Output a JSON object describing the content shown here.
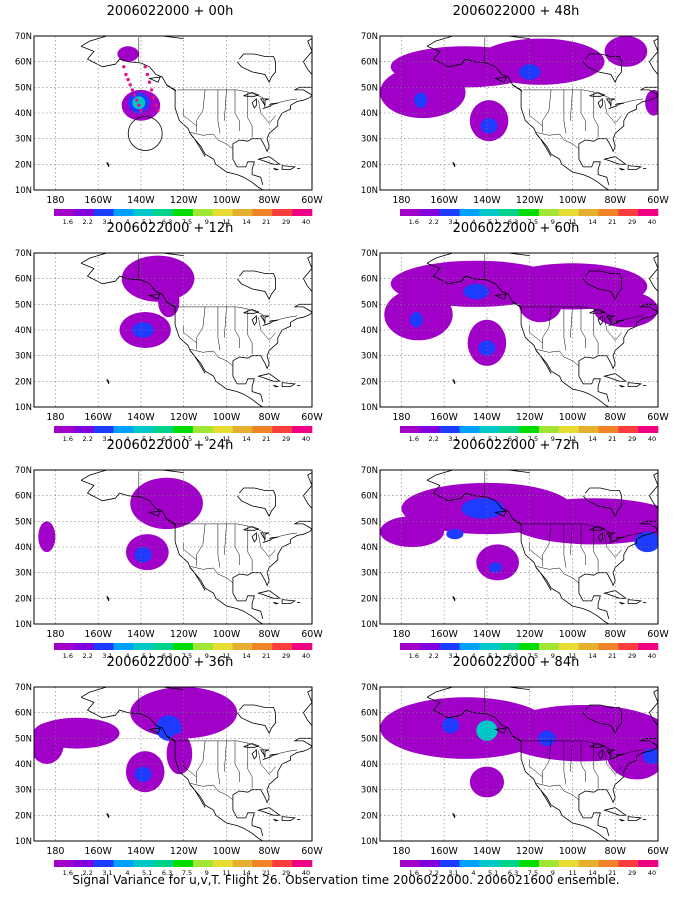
{
  "caption": "Signal Variance for u,v,T. Flight 26. Observation time 2006022000. 2006021600 ensemble.",
  "map": {
    "lat_labels": [
      "70N",
      "60N",
      "50N",
      "40N",
      "30N",
      "20N",
      "10N"
    ],
    "lon_labels": [
      "180",
      "160W",
      "140W",
      "120W",
      "100W",
      "80W",
      "60W"
    ],
    "lon_range": [
      -190,
      -60
    ],
    "lat_range": [
      10,
      70
    ]
  },
  "colorbar": {
    "labels": [
      "1.6",
      "2.2",
      "3.1",
      "4",
      "5.1",
      "6.3",
      "7.5",
      "9",
      "11",
      "14",
      "21",
      "29",
      "40"
    ],
    "colors": [
      "#a000c8",
      "#8200dc",
      "#1e3cff",
      "#00a0ff",
      "#00c8c8",
      "#00d28c",
      "#00dc00",
      "#a0e632",
      "#e6dc32",
      "#e6af2d",
      "#f08228",
      "#fa3c3c",
      "#f00082"
    ]
  },
  "panels": [
    {
      "run": "2006022000",
      "lead": "00h",
      "blobs": [
        {
          "lon": -140,
          "lat": 43,
          "rx": 9,
          "ry": 6,
          "level": 0
        },
        {
          "lon": -141,
          "lat": 44,
          "rx": 5,
          "ry": 4,
          "level": 1
        },
        {
          "lon": -141,
          "lat": 44,
          "rx": 3,
          "ry": 2.5,
          "level": 2
        },
        {
          "lon": -146,
          "lat": 63,
          "rx": 5,
          "ry": 3,
          "level": 0
        }
      ],
      "track": true,
      "circle": true
    },
    {
      "run": "2006022000",
      "lead": "48h",
      "blobs": [
        {
          "lon": -150,
          "lat": 58,
          "rx": 35,
          "ry": 8,
          "level": 0
        },
        {
          "lon": -115,
          "lat": 60,
          "rx": 30,
          "ry": 9,
          "level": 0
        },
        {
          "lon": -170,
          "lat": 48,
          "rx": 20,
          "ry": 10,
          "level": 0
        },
        {
          "lon": -139,
          "lat": 37,
          "rx": 9,
          "ry": 8,
          "level": 0
        },
        {
          "lon": -139,
          "lat": 35,
          "rx": 4,
          "ry": 3,
          "level": 1
        },
        {
          "lon": -171,
          "lat": 45,
          "rx": 3,
          "ry": 3,
          "level": 1
        },
        {
          "lon": -120,
          "lat": 56,
          "rx": 5,
          "ry": 3,
          "level": 1
        },
        {
          "lon": -75,
          "lat": 64,
          "rx": 10,
          "ry": 6,
          "level": 0
        },
        {
          "lon": -62,
          "lat": 44,
          "rx": 4,
          "ry": 5,
          "level": 0
        }
      ],
      "track": false,
      "circle": false
    },
    {
      "run": "2006022000",
      "lead": "12h",
      "blobs": [
        {
          "lon": -132,
          "lat": 60,
          "rx": 17,
          "ry": 9,
          "level": 0
        },
        {
          "lon": -138,
          "lat": 40,
          "rx": 12,
          "ry": 7,
          "level": 0
        },
        {
          "lon": -139,
          "lat": 40,
          "rx": 5,
          "ry": 3,
          "level": 1
        },
        {
          "lon": -127,
          "lat": 51,
          "rx": 5,
          "ry": 6,
          "level": 0
        }
      ],
      "track": false,
      "circle": false
    },
    {
      "run": "2006022000",
      "lead": "60h",
      "blobs": [
        {
          "lon": -145,
          "lat": 58,
          "rx": 40,
          "ry": 9,
          "level": 0
        },
        {
          "lon": -100,
          "lat": 57,
          "rx": 35,
          "ry": 9,
          "level": 0
        },
        {
          "lon": -172,
          "lat": 46,
          "rx": 16,
          "ry": 10,
          "level": 0
        },
        {
          "lon": -140,
          "lat": 35,
          "rx": 9,
          "ry": 9,
          "level": 0
        },
        {
          "lon": -140,
          "lat": 33,
          "rx": 4,
          "ry": 3,
          "level": 1
        },
        {
          "lon": -173,
          "lat": 44,
          "rx": 3,
          "ry": 3,
          "level": 1
        },
        {
          "lon": -145,
          "lat": 55,
          "rx": 6,
          "ry": 3,
          "level": 1
        },
        {
          "lon": -75,
          "lat": 48,
          "rx": 15,
          "ry": 7,
          "level": 0
        },
        {
          "lon": -115,
          "lat": 50,
          "rx": 10,
          "ry": 7,
          "level": 0
        }
      ],
      "track": false,
      "circle": false
    },
    {
      "run": "2006022000",
      "lead": "24h",
      "blobs": [
        {
          "lon": -128,
          "lat": 57,
          "rx": 17,
          "ry": 10,
          "level": 0
        },
        {
          "lon": -137,
          "lat": 38,
          "rx": 10,
          "ry": 7,
          "level": 0
        },
        {
          "lon": -139,
          "lat": 37,
          "rx": 4,
          "ry": 3,
          "level": 1
        },
        {
          "lon": -184,
          "lat": 44,
          "rx": 4,
          "ry": 6,
          "level": 0
        }
      ],
      "track": false,
      "circle": false
    },
    {
      "run": "2006022000",
      "lead": "72h",
      "blobs": [
        {
          "lon": -140,
          "lat": 55,
          "rx": 40,
          "ry": 10,
          "level": 0
        },
        {
          "lon": -90,
          "lat": 50,
          "rx": 40,
          "ry": 9,
          "level": 0
        },
        {
          "lon": -175,
          "lat": 46,
          "rx": 15,
          "ry": 6,
          "level": 0
        },
        {
          "lon": -135,
          "lat": 34,
          "rx": 10,
          "ry": 7,
          "level": 0
        },
        {
          "lon": -136,
          "lat": 32,
          "rx": 3,
          "ry": 2,
          "level": 1
        },
        {
          "lon": -142,
          "lat": 55,
          "rx": 10,
          "ry": 4,
          "level": 1
        },
        {
          "lon": -65,
          "lat": 42,
          "rx": 6,
          "ry": 4,
          "level": 1
        },
        {
          "lon": -155,
          "lat": 45,
          "rx": 4,
          "ry": 2,
          "level": 1
        }
      ],
      "track": false,
      "circle": false
    },
    {
      "run": "2006022000",
      "lead": "36h",
      "blobs": [
        {
          "lon": -120,
          "lat": 60,
          "rx": 25,
          "ry": 10,
          "level": 0
        },
        {
          "lon": -170,
          "lat": 52,
          "rx": 20,
          "ry": 6,
          "level": 0
        },
        {
          "lon": -184,
          "lat": 48,
          "rx": 8,
          "ry": 8,
          "level": 0
        },
        {
          "lon": -138,
          "lat": 37,
          "rx": 9,
          "ry": 8,
          "level": 0
        },
        {
          "lon": -139,
          "lat": 36,
          "rx": 4,
          "ry": 3,
          "level": 1
        },
        {
          "lon": -127,
          "lat": 54,
          "rx": 6,
          "ry": 5,
          "level": 1
        },
        {
          "lon": -122,
          "lat": 44,
          "rx": 6,
          "ry": 8,
          "level": 0
        }
      ],
      "track": false,
      "circle": false
    },
    {
      "run": "2006022000",
      "lead": "84h",
      "blobs": [
        {
          "lon": -150,
          "lat": 54,
          "rx": 40,
          "ry": 12,
          "level": 0
        },
        {
          "lon": -95,
          "lat": 52,
          "rx": 40,
          "ry": 11,
          "level": 0
        },
        {
          "lon": -70,
          "lat": 44,
          "rx": 14,
          "ry": 10,
          "level": 0
        },
        {
          "lon": -140,
          "lat": 33,
          "rx": 8,
          "ry": 6,
          "level": 0
        },
        {
          "lon": -140,
          "lat": 53,
          "rx": 5,
          "ry": 4,
          "level": 2
        },
        {
          "lon": -157,
          "lat": 55,
          "rx": 4,
          "ry": 3,
          "level": 1
        },
        {
          "lon": -112,
          "lat": 50,
          "rx": 4,
          "ry": 3,
          "level": 1
        },
        {
          "lon": -63,
          "lat": 43,
          "rx": 4,
          "ry": 3,
          "level": 1
        }
      ],
      "track": false,
      "circle": false
    }
  ]
}
